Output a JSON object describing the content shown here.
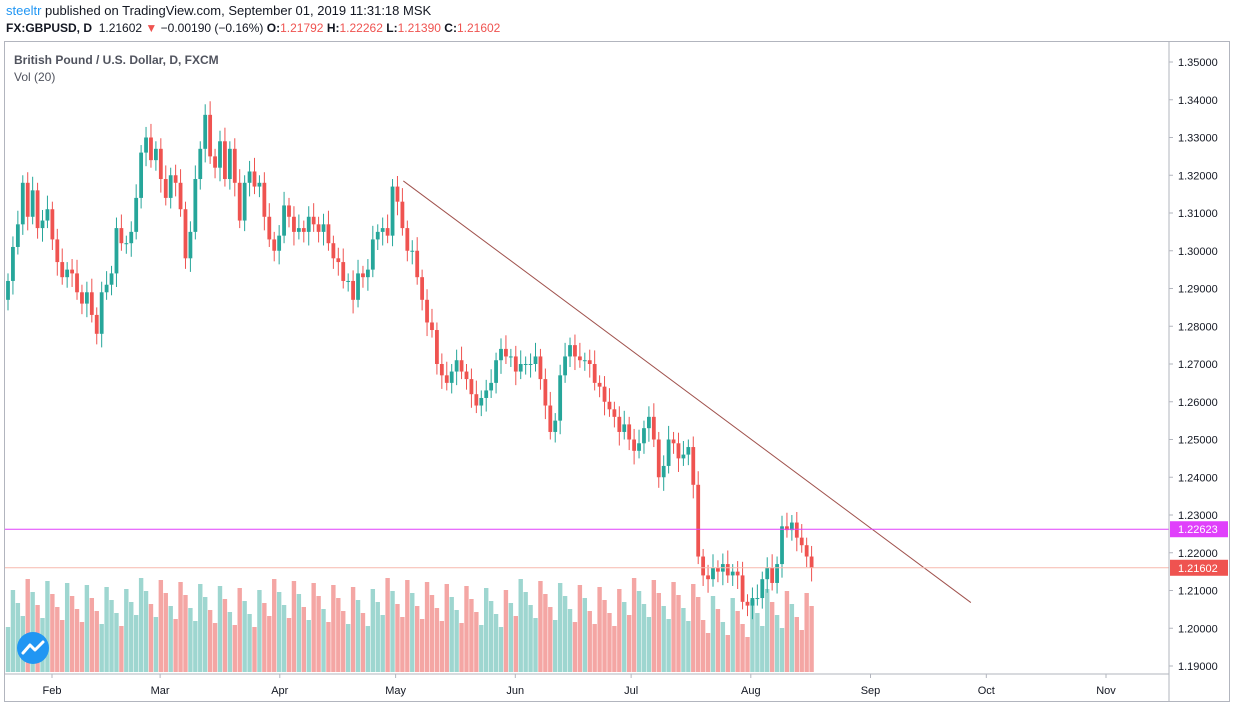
{
  "header": {
    "author": "steeltr",
    "published_text": " published on TradingView.com, September 01, 2019 11:31:18 MSK",
    "symbol": "FX:GBPUSD, D",
    "last": "1.21602",
    "change": "−0.00190 (−0.16%)",
    "o_label": "O:",
    "o_value": "1.21792",
    "h_label": "H:",
    "h_value": "1.22262",
    "l_label": "L:",
    "l_value": "1.21390",
    "c_label": "C:",
    "c_value": "1.21602"
  },
  "legend": {
    "title": "British Pound / U.S. Dollar, D, FXCM",
    "volume": "Vol (20)"
  },
  "colors": {
    "up": "#26a69a",
    "down": "#ef5350",
    "up_vol": "#9ed6d0",
    "down_vol": "#f4a6a4",
    "trendline": "#a0524d",
    "resistance": "#e040fb",
    "resistance_label_bg": "#e040fb",
    "last_price_line": "#f7b9ad",
    "last_price_label_bg": "#ef5350"
  },
  "chart_data": {
    "type": "candlestick",
    "symbol": "GBPUSD",
    "timeframe": "D",
    "y_axis": {
      "range": [
        1.185,
        1.355
      ],
      "ticks": [
        "1.35000",
        "1.34000",
        "1.33000",
        "1.32000",
        "1.31000",
        "1.30000",
        "1.29000",
        "1.28000",
        "1.27000",
        "1.26000",
        "1.25000",
        "1.24000",
        "1.23000",
        "1.22000",
        "1.21000",
        "1.20000",
        "1.19000"
      ]
    },
    "x_axis": {
      "months": [
        {
          "label": "Feb",
          "date": "2019-02-01"
        },
        {
          "label": "Mar",
          "date": "2019-03-01"
        },
        {
          "label": "Apr",
          "date": "2019-04-01"
        },
        {
          "label": "May",
          "date": "2019-05-01"
        },
        {
          "label": "Jun",
          "date": "2019-06-01"
        },
        {
          "label": "Jul",
          "date": "2019-07-01"
        },
        {
          "label": "Aug",
          "date": "2019-08-01"
        },
        {
          "label": "Sep",
          "date": "2019-09-01"
        },
        {
          "label": "Oct",
          "date": "2019-10-01"
        },
        {
          "label": "Nov",
          "date": "2019-11-01"
        }
      ],
      "range": [
        "2019-01-21",
        "2019-11-30"
      ]
    },
    "closes": [
      1.292,
      1.301,
      1.307,
      1.318,
      1.309,
      1.316,
      1.306,
      1.308,
      1.311,
      1.303,
      1.297,
      1.293,
      1.295,
      1.294,
      1.289,
      1.286,
      1.289,
      1.283,
      1.278,
      1.289,
      1.291,
      1.294,
      1.306,
      1.302,
      1.302,
      1.305,
      1.314,
      1.326,
      1.33,
      1.324,
      1.327,
      1.319,
      1.314,
      1.32,
      1.318,
      1.311,
      1.298,
      1.305,
      1.319,
      1.327,
      1.336,
      1.325,
      1.322,
      1.329,
      1.319,
      1.327,
      1.318,
      1.308,
      1.318,
      1.321,
      1.317,
      1.318,
      1.309,
      1.303,
      1.3,
      1.304,
      1.312,
      1.309,
      1.305,
      1.306,
      1.305,
      1.309,
      1.307,
      1.305,
      1.307,
      1.302,
      1.298,
      1.297,
      1.292,
      1.292,
      1.287,
      1.294,
      1.293,
      1.295,
      1.303,
      1.305,
      1.306,
      1.304,
      1.317,
      1.313,
      1.306,
      1.3,
      1.3,
      1.293,
      1.287,
      1.281,
      1.279,
      1.27,
      1.267,
      1.265,
      1.268,
      1.271,
      1.268,
      1.266,
      1.262,
      1.259,
      1.261,
      1.263,
      1.265,
      1.271,
      1.274,
      1.272,
      1.272,
      1.268,
      1.27,
      1.27,
      1.27,
      1.272,
      1.266,
      1.259,
      1.252,
      1.255,
      1.267,
      1.272,
      1.275,
      1.272,
      1.271,
      1.271,
      1.27,
      1.265,
      1.264,
      1.26,
      1.258,
      1.256,
      1.252,
      1.254,
      1.25,
      1.247,
      1.249,
      1.253,
      1.256,
      1.25,
      1.24,
      1.243,
      1.25,
      1.249,
      1.245,
      1.246,
      1.248,
      1.238,
      1.219,
      1.214,
      1.213,
      1.216,
      1.215,
      1.217,
      1.214,
      1.215,
      1.214,
      1.207,
      1.206,
      1.208,
      1.208,
      1.213,
      1.216,
      1.212,
      1.217,
      1.227,
      1.226,
      1.228,
      1.224,
      1.222,
      1.219,
      1.216
    ],
    "trendline": [
      {
        "date": "2019-05-03",
        "price": 1.3185
      },
      {
        "date": "2019-09-27",
        "price": 1.2068
      }
    ],
    "horizontal_line": {
      "price": 1.22623,
      "label": "1.22623"
    },
    "last_price": {
      "price": 1.21602,
      "label": "1.21602"
    }
  }
}
